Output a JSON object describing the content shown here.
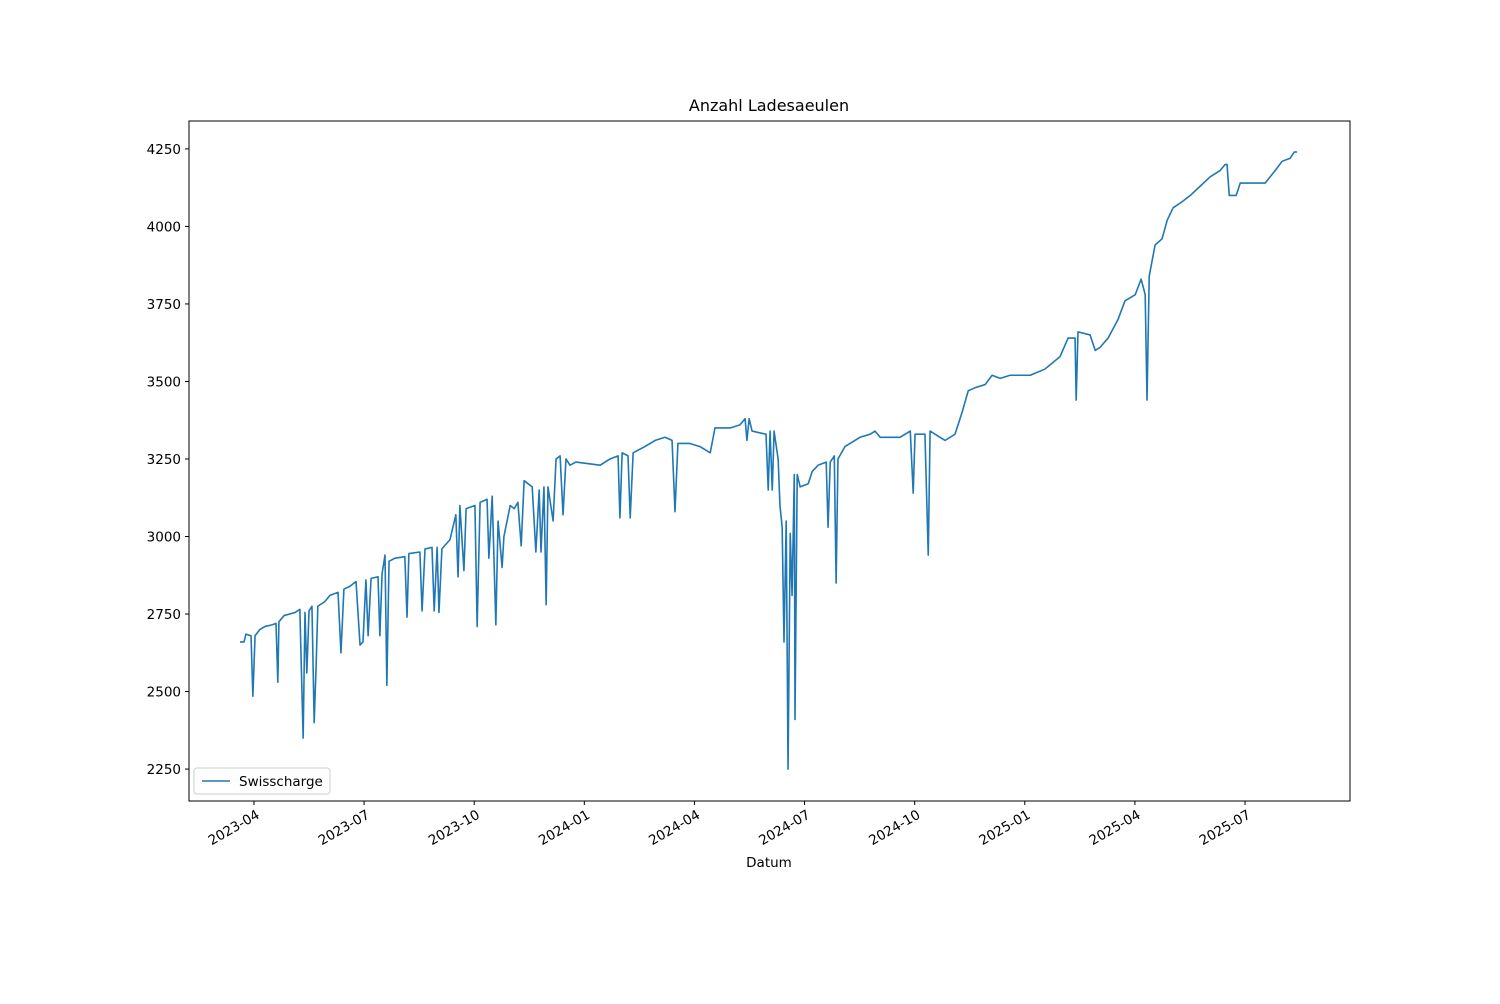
{
  "chart_data": {
    "type": "line",
    "title": "Anzahl Ladesaeulen",
    "xlabel": "Datum",
    "x": [
      -0.38,
      -0.27,
      -0.22,
      -0.08,
      -0.03,
      0.03,
      0.16,
      0.3,
      0.49,
      0.6,
      0.65,
      0.68,
      0.82,
      1.12,
      1.25,
      1.34,
      1.39,
      1.44,
      1.5,
      1.58,
      1.64,
      1.69,
      1.74,
      1.93,
      2.07,
      2.29,
      2.37,
      2.45,
      2.62,
      2.78,
      2.89,
      2.97,
      3.05,
      3.11,
      3.19,
      3.38,
      3.43,
      3.49,
      3.57,
      3.62,
      3.68,
      3.84,
      4.11,
      4.17,
      4.22,
      4.52,
      4.58,
      4.66,
      4.85,
      4.91,
      4.99,
      5.04,
      5.12,
      5.34,
      5.5,
      5.56,
      5.61,
      5.72,
      5.78,
      6.02,
      6.08,
      6.16,
      6.35,
      6.4,
      6.49,
      6.59,
      6.65,
      6.76,
      6.81,
      6.98,
      7.09,
      7.19,
      7.28,
      7.36,
      7.58,
      7.68,
      7.77,
      7.82,
      7.9,
      7.96,
      8.01,
      8.15,
      8.23,
      8.34,
      8.42,
      8.5,
      8.61,
      8.77,
      9.43,
      9.7,
      9.92,
      9.97,
      10.03,
      10.19,
      10.25,
      10.33,
      10.65,
      10.93,
      11.2,
      11.39,
      11.47,
      11.55,
      11.88,
      12.15,
      12.43,
      12.56,
      12.97,
      13.24,
      13.38,
      13.43,
      13.49,
      13.57,
      13.95,
      14.01,
      14.06,
      14.12,
      14.17,
      14.28,
      14.33,
      14.39,
      14.44,
      14.5,
      14.55,
      14.61,
      14.66,
      14.72,
      14.74,
      14.8,
      14.88,
      15.1,
      15.21,
      15.37,
      15.59,
      15.64,
      15.7,
      15.81,
      15.86,
      15.91,
      16.1,
      16.24,
      16.51,
      16.79,
      16.92,
      17.06,
      17.6,
      17.88,
      17.96,
      18.01,
      18.28,
      18.37,
      18.42,
      18.69,
      18.83,
      19.1,
      19.29,
      19.46,
      19.65,
      19.92,
      20.11,
      20.33,
      20.6,
      21.15,
      21.55,
      21.96,
      22.18,
      22.37,
      22.4,
      22.45,
      22.78,
      22.92,
      23.05,
      23.27,
      23.54,
      23.73,
      24.01,
      24.17,
      24.28,
      24.33,
      24.39,
      24.55,
      24.74,
      24.88,
      25.04,
      25.29,
      25.51,
      25.78,
      26.05,
      26.32,
      26.46,
      26.51,
      26.57,
      26.76,
      26.87,
      27.28,
      27.55,
      27.82,
      28.01,
      28.23,
      28.34,
      28.42
    ],
    "series": [
      {
        "name": "Swisscharge",
        "color": "#1f77b4",
        "values": [
          2660,
          2660,
          2685,
          2680,
          2485,
          2680,
          2700,
          2710,
          2715,
          2720,
          2530,
          2725,
          2745,
          2755,
          2765,
          2350,
          2755,
          2560,
          2760,
          2775,
          2400,
          2570,
          2775,
          2790,
          2810,
          2820,
          2625,
          2830,
          2840,
          2855,
          2650,
          2660,
          2860,
          2680,
          2865,
          2870,
          2680,
          2880,
          2940,
          2520,
          2920,
          2930,
          2935,
          2740,
          2945,
          2950,
          2760,
          2960,
          2965,
          2760,
          2965,
          2755,
          2960,
          2990,
          3070,
          2870,
          3100,
          2890,
          3090,
          3100,
          2710,
          3110,
          3120,
          2930,
          3130,
          2715,
          3050,
          2900,
          3000,
          3100,
          3090,
          3110,
          2970,
          3180,
          3160,
          2950,
          3150,
          2950,
          3160,
          2780,
          3160,
          3050,
          3250,
          3260,
          3070,
          3250,
          3230,
          3240,
          3230,
          3250,
          3260,
          3060,
          3270,
          3260,
          3060,
          3270,
          3290,
          3310,
          3320,
          3310,
          3080,
          3300,
          3300,
          3290,
          3270,
          3350,
          3350,
          3360,
          3380,
          3310,
          3380,
          3340,
          3330,
          3150,
          3340,
          3150,
          3340,
          3250,
          3100,
          3030,
          2660,
          3050,
          2250,
          3010,
          2810,
          3200,
          2410,
          3200,
          3160,
          3170,
          3210,
          3230,
          3240,
          3030,
          3240,
          3260,
          2850,
          3250,
          3290,
          3300,
          3320,
          3330,
          3340,
          3320,
          3320,
          3340,
          3140,
          3330,
          3330,
          2940,
          3340,
          3320,
          3310,
          3330,
          3400,
          3470,
          3480,
          3490,
          3520,
          3510,
          3520,
          3520,
          3540,
          3580,
          3640,
          3640,
          3440,
          3660,
          3650,
          3600,
          3610,
          3640,
          3700,
          3760,
          3780,
          3830,
          3780,
          3440,
          3840,
          3940,
          3960,
          4020,
          4060,
          4080,
          4100,
          4130,
          4160,
          4180,
          4200,
          4200,
          4100,
          4100,
          4140,
          4140,
          4140,
          4180,
          4210,
          4220,
          4240,
          4240
        ]
      }
    ],
    "xlim": [
      -1.77,
      29.86
    ],
    "xticks": [
      {
        "value": 0,
        "label": "2023-04"
      },
      {
        "value": 3,
        "label": "2023-07"
      },
      {
        "value": 6,
        "label": "2023-10"
      },
      {
        "value": 9,
        "label": "2024-01"
      },
      {
        "value": 12,
        "label": "2024-04"
      },
      {
        "value": 15,
        "label": "2024-07"
      },
      {
        "value": 18,
        "label": "2024-10"
      },
      {
        "value": 21,
        "label": "2025-01"
      },
      {
        "value": 24,
        "label": "2025-04"
      },
      {
        "value": 27,
        "label": "2025-07"
      }
    ],
    "ylim": [
      2147,
      4340
    ],
    "yticks": [
      2250,
      2500,
      2750,
      3000,
      3250,
      3500,
      3750,
      4000,
      4250
    ],
    "legend": "lower left"
  }
}
